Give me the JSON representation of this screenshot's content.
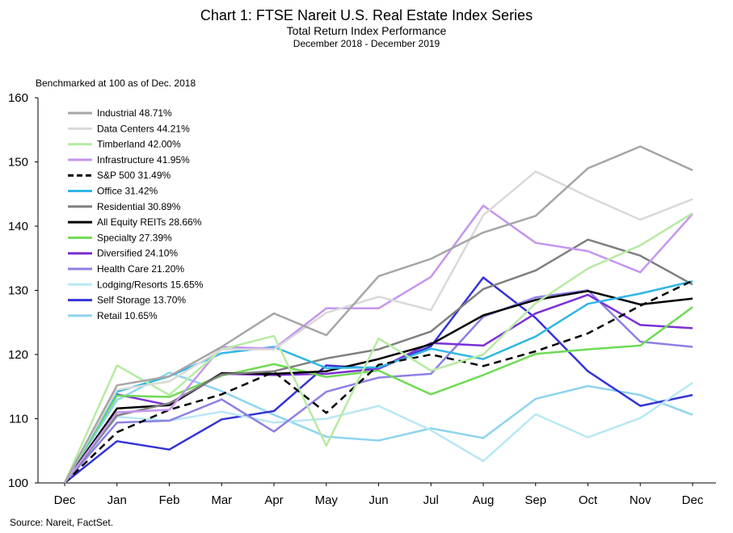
{
  "chart_data": {
    "type": "line",
    "title": "Chart 1: FTSE Nareit U.S. Real Estate Index Series",
    "subtitle": "Total Return Index Performance",
    "date_range": "December 2018 - December 2019",
    "ylabel": "Benchmarked at 100 as of Dec. 2018",
    "source": "Source: Nareit, FactSet.",
    "categories": [
      "Dec",
      "Jan",
      "Feb",
      "Mar",
      "Apr",
      "May",
      "Jun",
      "Jul",
      "Aug",
      "Sep",
      "Oct",
      "Nov",
      "Dec"
    ],
    "ylim": [
      100,
      160
    ],
    "yticks": [
      100,
      110,
      120,
      130,
      140,
      150,
      160
    ],
    "legend_position": "top-left",
    "series": [
      {
        "name": "Industrial 48.71%",
        "color": "#a6a6a6",
        "dashed": false,
        "values": [
          100,
          115.2,
          116.6,
          121.2,
          126.4,
          123.0,
          132.2,
          134.9,
          139.0,
          141.6,
          149.0,
          152.4,
          148.7
        ]
      },
      {
        "name": "Data Centers 44.21%",
        "color": "#d9d9d9",
        "dashed": false,
        "values": [
          100,
          114.5,
          115.8,
          120.8,
          120.8,
          126.5,
          129.0,
          126.9,
          141.7,
          148.5,
          144.6,
          141.0,
          144.2
        ]
      },
      {
        "name": "Timberland 42.00%",
        "color": "#b6eba3",
        "dashed": false,
        "values": [
          100,
          118.3,
          113.7,
          120.8,
          122.9,
          105.8,
          122.5,
          117.5,
          120.0,
          128.0,
          133.4,
          137.0,
          142.0
        ]
      },
      {
        "name": "Infrastructure 41.95%",
        "color": "#c595ee",
        "dashed": false,
        "values": [
          100,
          111.0,
          111.4,
          121.2,
          120.9,
          127.2,
          127.2,
          132.1,
          143.2,
          137.4,
          136.1,
          132.8,
          141.9
        ]
      },
      {
        "name": "S&P 500 31.49%",
        "color": "#000000",
        "dashed": true,
        "values": [
          100,
          107.9,
          111.4,
          113.8,
          117.3,
          110.9,
          118.4,
          120.0,
          118.2,
          120.5,
          123.3,
          127.6,
          131.5
        ]
      },
      {
        "name": "Office 31.42%",
        "color": "#31b6e6",
        "dashed": false,
        "values": [
          100,
          114.2,
          116.6,
          120.2,
          121.2,
          117.9,
          118.0,
          120.9,
          119.3,
          122.8,
          127.9,
          129.5,
          131.4
        ]
      },
      {
        "name": "Residential 30.89%",
        "color": "#7f7f7f",
        "dashed": false,
        "values": [
          100,
          110.5,
          112.4,
          116.9,
          117.4,
          119.4,
          120.8,
          123.6,
          130.2,
          133.1,
          137.9,
          135.4,
          130.9
        ]
      },
      {
        "name": "All Equity REITs 28.66%",
        "color": "#000000",
        "dashed": false,
        "values": [
          100,
          111.6,
          112.1,
          117.1,
          117.0,
          117.4,
          119.3,
          121.6,
          126.1,
          128.5,
          129.9,
          127.8,
          128.7
        ]
      },
      {
        "name": "Specialty 27.39%",
        "color": "#6fdb55",
        "dashed": false,
        "values": [
          100,
          113.6,
          113.4,
          116.7,
          118.5,
          116.5,
          117.5,
          113.8,
          116.8,
          120.1,
          120.8,
          121.4,
          127.4
        ]
      },
      {
        "name": "Diversified 24.10%",
        "color": "#7b2fd6",
        "dashed": false,
        "values": [
          100,
          113.8,
          112.1,
          117.0,
          116.8,
          117.0,
          117.8,
          121.8,
          121.4,
          126.4,
          129.3,
          124.6,
          124.1
        ]
      },
      {
        "name": "Health Care 21.20%",
        "color": "#8c80e6",
        "dashed": false,
        "values": [
          100,
          109.4,
          109.7,
          113.0,
          108.0,
          114.2,
          116.4,
          117.0,
          125.9,
          128.9,
          130.0,
          122.0,
          121.2
        ]
      },
      {
        "name": "Lodging/Resorts 15.65%",
        "color": "#b8e8f4",
        "dashed": false,
        "values": [
          100,
          110.3,
          109.7,
          111.1,
          109.4,
          110.0,
          112.0,
          108.2,
          103.4,
          110.7,
          107.1,
          110.1,
          115.6
        ]
      },
      {
        "name": "Self Storage 13.70%",
        "color": "#3434d6",
        "dashed": false,
        "values": [
          100,
          106.5,
          105.2,
          109.9,
          111.2,
          118.3,
          117.8,
          121.3,
          132.0,
          125.7,
          117.4,
          112.0,
          113.7
        ]
      },
      {
        "name": "Retail 10.65%",
        "color": "#8fd4ef",
        "dashed": false,
        "values": [
          100,
          112.9,
          117.2,
          114.3,
          110.6,
          107.2,
          106.6,
          108.5,
          107.0,
          113.1,
          115.1,
          113.7,
          110.6
        ]
      }
    ]
  }
}
